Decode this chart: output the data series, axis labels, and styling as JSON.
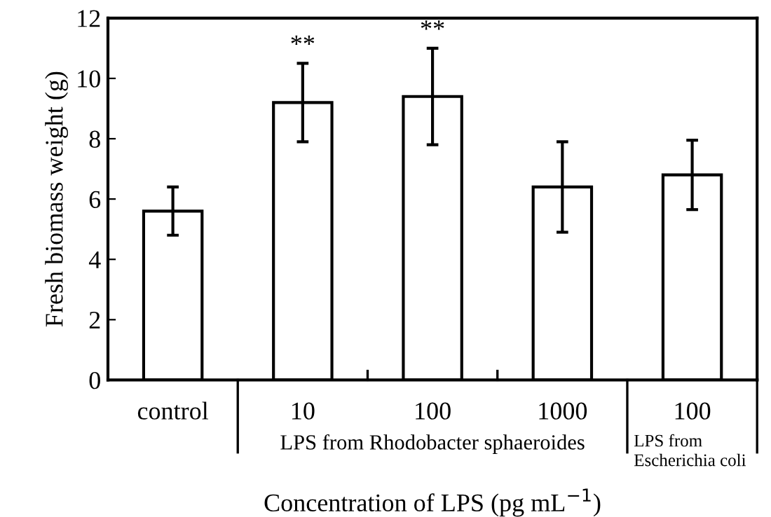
{
  "chart_data": {
    "type": "bar",
    "xlabel": "Concentration of LPS (pg mL$^{−1}$)",
    "ylabel": "Fresh biomass weight (g)",
    "categories": [
      "control",
      "10",
      "100",
      "1000",
      "100"
    ],
    "values": [
      5.6,
      9.2,
      9.4,
      6.4,
      6.8
    ],
    "errors": [
      [
        4.8,
        6.4
      ],
      [
        7.9,
        10.5
      ],
      [
        7.8,
        11.0
      ],
      [
        4.9,
        7.9
      ],
      [
        5.65,
        7.95
      ]
    ],
    "color": "#ffffff",
    "ylim": [
      0,
      12
    ],
    "yticks": [
      0,
      2,
      4,
      6,
      8,
      10,
      12
    ],
    "grid": false,
    "annotations": [
      {
        "text": "**",
        "x": "10",
        "y": 10.5
      },
      {
        "text": "**",
        "x": "100",
        "y": 11.0
      },
      "LPS from Rhodobacter sphaeroides",
      "LPS from\nEscherichia coli"
    ]
  }
}
